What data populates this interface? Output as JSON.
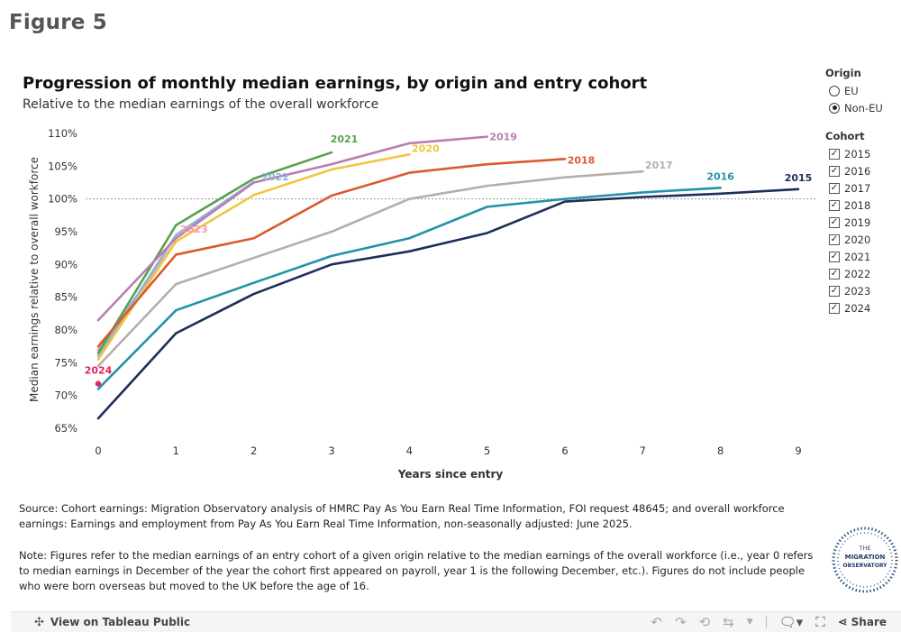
{
  "figure_label": "Figure 5",
  "chart_data": {
    "type": "line",
    "title": "Progression of monthly median earnings, by origin and entry cohort",
    "subtitle": "Relative to the median earnings of the overall workforce",
    "xlabel": "Years since entry",
    "ylabel": "Median earnings relative to overall workforce",
    "x_ticks": [
      "0",
      "1",
      "2",
      "3",
      "4",
      "5",
      "6",
      "7",
      "8",
      "9"
    ],
    "y_ticks": [
      "65%",
      "70%",
      "75%",
      "80%",
      "85%",
      "90%",
      "95%",
      "100%",
      "105%",
      "110%"
    ],
    "ylim": [
      64,
      111
    ],
    "xlim": [
      0,
      9
    ],
    "reference_line": 100,
    "series": [
      {
        "name": "2015",
        "color": "#1f2d5a",
        "values": [
          66.5,
          79.5,
          85.5,
          90,
          92,
          94.8,
          99.6,
          100.3,
          100.8,
          101.5
        ]
      },
      {
        "name": "2016",
        "color": "#2293a8",
        "values": [
          71,
          83,
          87.2,
          91.3,
          94,
          98.8,
          100,
          101,
          101.7
        ]
      },
      {
        "name": "2017",
        "color": "#b7aea8",
        "values": [
          74.5,
          87,
          91,
          95,
          100,
          102,
          103.3,
          104.2
        ]
      },
      {
        "name": "2018",
        "color": "#db5a2e",
        "values": [
          77.5,
          91.5,
          94,
          100.5,
          104,
          105.3,
          106.1
        ]
      },
      {
        "name": "2019",
        "color": "#b97db0",
        "values": [
          81.5,
          94,
          102.5,
          105.3,
          108.5,
          109.5
        ]
      },
      {
        "name": "2020",
        "color": "#f1c53e",
        "values": [
          75.5,
          93.5,
          100.6,
          104.5,
          106.8
        ]
      },
      {
        "name": "2021",
        "color": "#59a14f",
        "values": [
          76.5,
          96,
          103.1,
          107.1
        ]
      },
      {
        "name": "2022",
        "color": "#8fb4db",
        "values": [
          76,
          94.5,
          102.6
        ]
      },
      {
        "name": "2023",
        "color": "#f29bb1",
        "values": [
          77,
          93.5
        ]
      },
      {
        "name": "2024",
        "color": "#e0245e",
        "values": [
          71.8
        ]
      }
    ]
  },
  "filters": {
    "origin": {
      "title": "Origin",
      "options": [
        {
          "label": "EU",
          "selected": false
        },
        {
          "label": "Non-EU",
          "selected": true
        }
      ]
    },
    "cohort": {
      "title": "Cohort",
      "options": [
        "2015",
        "2016",
        "2017",
        "2018",
        "2019",
        "2020",
        "2021",
        "2022",
        "2023",
        "2024"
      ]
    }
  },
  "source_text": "Source: Cohort earnings: Migration Observatory analysis of HMRC Pay As You Earn Real Time Information, FOI request 48645; and overall workforce earnings: Earnings and employment from Pay As You Earn Real Time Information, non-seasonally adjusted: June 2025.",
  "note_text": "Note: Figures refer to the median earnings of an entry cohort of a given origin relative to the median earnings of the overall workforce (i.e., year 0 refers to median earnings in December of the year the cohort first appeared on payroll, year 1 is the following December, etc.). Figures do not include people who were born overseas but moved to the UK before the age of 16.",
  "logo": {
    "line1": "THE",
    "line2": "MIGRATION",
    "line3": "OBSERVATORY"
  },
  "toolbar": {
    "view_label": "View on Tableau Public",
    "share_label": "Share"
  }
}
